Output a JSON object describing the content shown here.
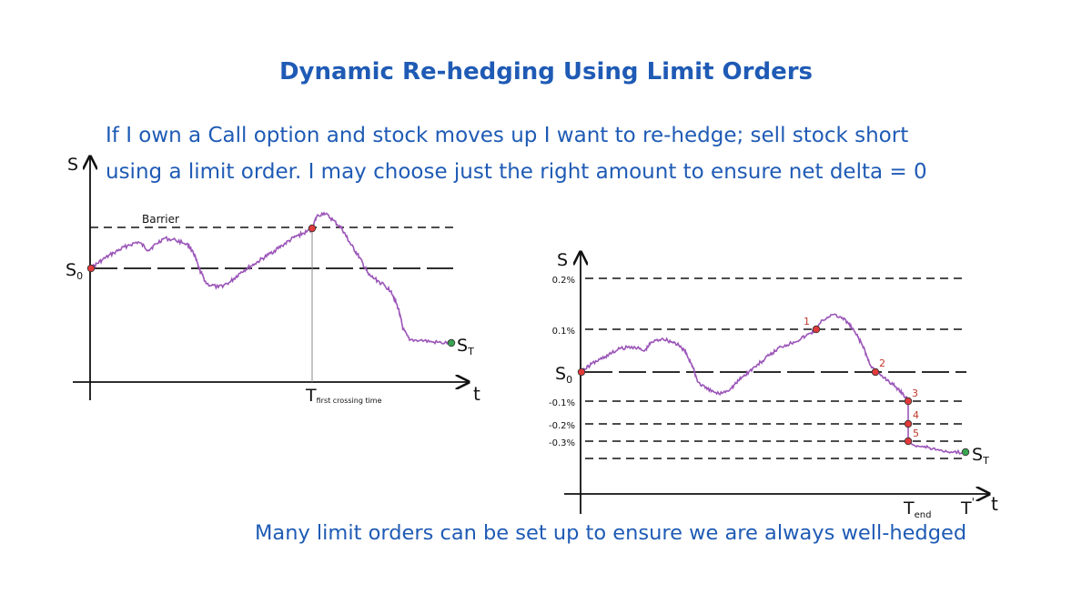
{
  "title": "Dynamic Re-hedging Using Limit Orders",
  "body_lines": [
    "If I own a Call option and stock moves up I want to re-hedge; sell stock short",
    "using a limit order. I may choose just the right amount to ensure net delta = 0"
  ],
  "footer": "Many limit orders can be set up to ensure we are always well-hedged",
  "colors": {
    "title": "#1f5bb5",
    "path": "#9b55b8",
    "hit_marker": "#e23a3a",
    "end_marker": "#3aa352",
    "step_label": "#c0392b"
  },
  "left_diagram": {
    "y_axis_label": "S",
    "x_axis_label": "t",
    "barrier_label": "Barrier",
    "start_label_main": "S",
    "start_label_sub": "0",
    "end_label_main": "S",
    "end_label_sub": "T",
    "crossing_label_main": "T",
    "crossing_label_sub": "first crossing time"
  },
  "right_diagram": {
    "y_axis_label": "S",
    "x_axis_label": "t",
    "levels": [
      "0.2%",
      "0.1%",
      "-0.1%",
      "-0.2%",
      "-0.3%"
    ],
    "start_label_main": "S",
    "start_label_sub": "0",
    "end_label_main": "S",
    "end_label_sub": "T",
    "t_end_main": "T",
    "t_end_sub": "end",
    "t_prime_main": "T",
    "t_prime_sup": "'",
    "order_numbers": [
      "1",
      "2",
      "3",
      "4",
      "5"
    ]
  }
}
